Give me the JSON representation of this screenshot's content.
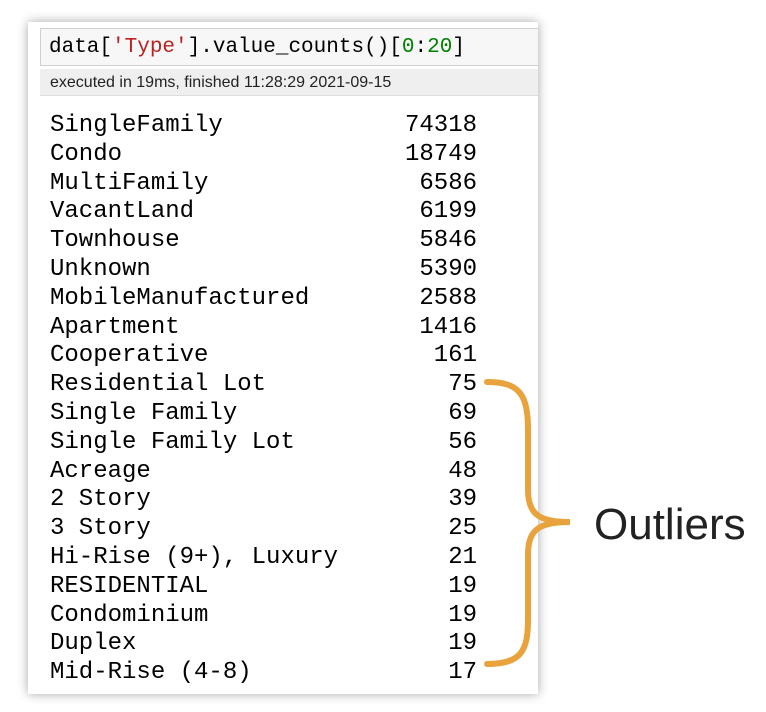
{
  "cell": {
    "code": [
      "data[",
      "'Type'",
      "].value_counts()[",
      "0",
      ":",
      "20",
      "]"
    ],
    "execution_info": "executed in 19ms, finished 11:28:29 2021-09-15",
    "output": {
      "rows": [
        [
          "SingleFamily",
          74318
        ],
        [
          "Condo",
          18749
        ],
        [
          "MultiFamily",
          6586
        ],
        [
          "VacantLand",
          6199
        ],
        [
          "Townhouse",
          5846
        ],
        [
          "Unknown",
          5390
        ],
        [
          "MobileManufactured",
          2588
        ],
        [
          "Apartment",
          1416
        ],
        [
          "Cooperative",
          161
        ],
        [
          "Residential Lot",
          75
        ],
        [
          "Single Family",
          69
        ],
        [
          "Single Family Lot",
          56
        ],
        [
          "Acreage",
          48
        ],
        [
          "2 Story",
          39
        ],
        [
          "3 Story",
          25
        ],
        [
          "Hi-Rise (9+), Luxury",
          21
        ],
        [
          "RESIDENTIAL",
          19
        ],
        [
          "Condominium",
          19
        ],
        [
          "Duplex",
          19
        ],
        [
          "Mid-Rise (4-8)",
          17
        ]
      ]
    }
  },
  "annotation": {
    "label": "Outliers"
  }
}
